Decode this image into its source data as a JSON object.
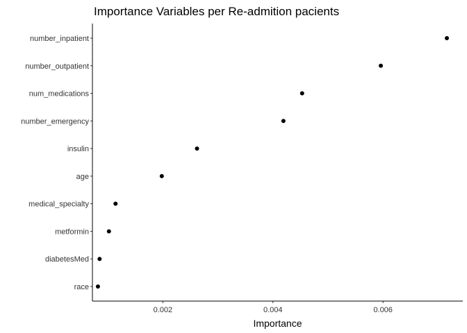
{
  "chart_data": {
    "type": "scatter",
    "title": "Importance Variables per Re-admition pacients",
    "xlabel": "Importance",
    "ylabel": "",
    "xlim": [
      0.00072,
      0.00745
    ],
    "x_ticks": [
      0.002,
      0.004,
      0.006
    ],
    "x_tick_labels": [
      "0.002",
      "0.004",
      "0.006"
    ],
    "grid": false,
    "point_color": "#000000",
    "categories": [
      "number_inpatient",
      "number_outpatient",
      "num_medications",
      "number_emergency",
      "insulin",
      "age",
      "medical_specialty",
      "metformin",
      "diabetesMed",
      "race"
    ],
    "values": [
      0.00716,
      0.00596,
      0.00453,
      0.00419,
      0.00262,
      0.00198,
      0.00114,
      0.00102,
      0.00085,
      0.00082
    ]
  }
}
